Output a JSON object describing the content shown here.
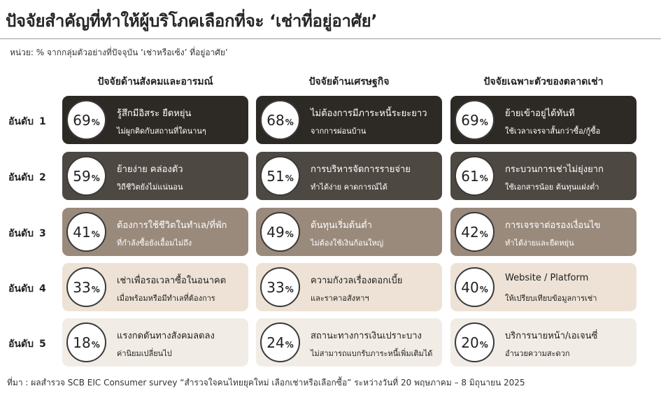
{
  "title": "ปัจจัยสำคัญที่ทำให้ผู้บริโภคเลือกที่จะ ‘เช่าที่อยู่อาศัย’",
  "unit_note": "หน่วย: % จากกลุ่มตัวอย่างที่ปัจจุบัน ‘เช่าหรือเซ้ง’ ที่อยู่อาศัย’",
  "source": "ที่มา : ผลสำรวจ SCB EIC Consumer survey “สำรวจใจคนไทยยุคใหม่ เลือกเช่าหรือเลือกซื้อ” ระหว่างวันที่ 20 พฤษภาคม – 8 มิถุนายน 2025",
  "colors": {
    "rank1": "#2d2a26",
    "rank2": "#4e4843",
    "rank3": "#9a8a7c",
    "rank4": "#ede2d5",
    "rank5": "#f1ede6",
    "text_light": "#ffffff",
    "text_dark": "#1e1e1e"
  },
  "chart_data": {
    "type": "table",
    "title": "ปัจจัยสำคัญที่ทำให้ผู้บริโภคเลือกที่จะ ‘เช่าที่อยู่อาศัย’",
    "unit": "%",
    "columns": [
      "ปัจจัยด้านสังคมและอารมณ์",
      "ปัจจัยด้านเศรษฐกิจ",
      "ปัจจัยเฉพาะตัวของตลาดเช่า"
    ],
    "rank_label": "อันดับ",
    "ranks": [
      "1",
      "2",
      "3",
      "4",
      "5"
    ],
    "cells": [
      [
        {
          "value": 69,
          "line1": "รู้สึกมีอิสระ ยืดหยุ่น",
          "line2": "ไม่ผูกติดกับสถานที่ใดนานๆ"
        },
        {
          "value": 68,
          "line1": "ไม่ต้องการมีภาระหนี้ระยะยาว",
          "line2": "จากการผ่อนบ้าน"
        },
        {
          "value": 69,
          "line1": "ย้ายเข้าอยู่ได้ทันที",
          "line2": "ใช้เวลาเจรจาสั้นกว่าซื้อ/กู้ซื้อ"
        }
      ],
      [
        {
          "value": 59,
          "line1": "ย้ายง่าย คล่องตัว",
          "line2": "วิถีชีวิตยังไม่แน่นอน"
        },
        {
          "value": 51,
          "line1": "การบริหารจัดการรายจ่าย",
          "line2": "ทำได้ง่าย คาดการณ์ได้"
        },
        {
          "value": 61,
          "line1": "กระบวนการเช่าไม่ยุ่งยาก",
          "line2": "ใช้เอกสารน้อย ต้นทุนแฝงต่ำ"
        }
      ],
      [
        {
          "value": 41,
          "line1": "ต้องการใช้ชีวิตในทำเล/ที่พัก",
          "line2": "ที่กำลังซื้อยังเอื้อมไม่ถึง"
        },
        {
          "value": 49,
          "line1": "ต้นทุนเริ่มต้นต่ำ",
          "line2": "ไม่ต้องใช้เงินก้อนใหญ่"
        },
        {
          "value": 42,
          "line1": "การเจรจาต่อรองเงื่อนไข",
          "line2": "ทำได้ง่ายและยืดหยุ่น"
        }
      ],
      [
        {
          "value": 33,
          "line1": "เช่าเพื่อรอเวลาซื้อในอนาคต",
          "line2": "เมื่อพร้อมหรือมีทำเลที่ต้องการ"
        },
        {
          "value": 33,
          "line1": "ความกังวลเรื่องดอกเบี้ย",
          "line2": "และราคาอสังหาฯ"
        },
        {
          "value": 40,
          "line1": "Website / Platform",
          "line2": "ให้เปรียบเทียบข้อมูลการเช่า"
        }
      ],
      [
        {
          "value": 18,
          "line1": "แรงกดดันทางสังคมลดลง",
          "line2": "ค่านิยมเปลี่ยนไป"
        },
        {
          "value": 24,
          "line1": "สถานะทางการเงินเปราะบาง",
          "line2": "ไม่สามารถแบกรับภาระหนี้เพิ่มเติมได้"
        },
        {
          "value": 20,
          "line1": "บริการนายหน้า/เอเจนซี่",
          "line2": "อำนวยความสะดวก"
        }
      ]
    ]
  }
}
